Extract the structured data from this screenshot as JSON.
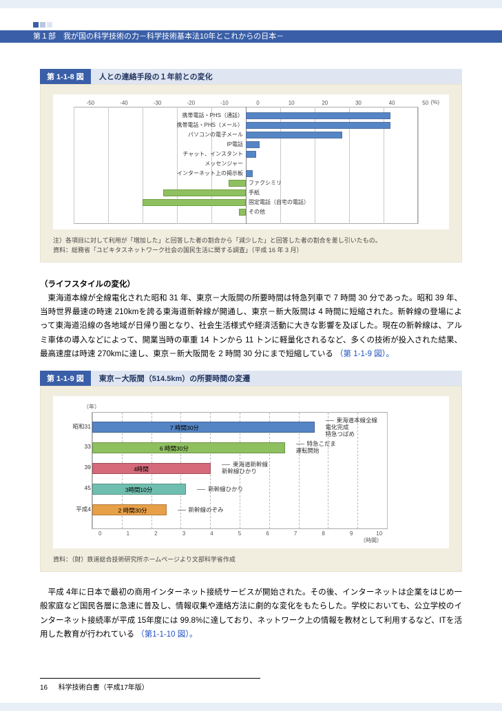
{
  "header": {
    "square_colors": [
      "#3a5fa8",
      "#b8c6e0",
      "#dfe6f2"
    ],
    "breadcrumb": "第１部　我が国の科学技術の力－科学技術基本法10年とこれからの日本－"
  },
  "chart1": {
    "label_num": "第 1-1-8 図",
    "label_title": "人との連絡手段の１年前との変化",
    "type": "diverging-bar",
    "xmin": -50,
    "xmax": 50,
    "xtick_step": 10,
    "xticks": [
      "-50",
      "-40",
      "-30",
      "-20",
      "-10",
      "0",
      "10",
      "20",
      "30",
      "40",
      "50"
    ],
    "xunit": "(%)",
    "bar_pos_color": "#5585c5",
    "bar_neg_color": "#8fc060",
    "background_color": "#ffffff",
    "panel_color": "#f2eedf",
    "grid_color": "#c8c8c8",
    "series": [
      {
        "label": "携帯電話・PHS（通話）",
        "label_side": "left",
        "value": 42
      },
      {
        "label": "携帯電話・PHS（メール）",
        "label_side": "left",
        "value": 42
      },
      {
        "label": "パソコンの電子メール",
        "label_side": "left",
        "value": 28
      },
      {
        "label": "IP電話",
        "label_side": "left",
        "value": 4
      },
      {
        "label": "チャット、インスタント",
        "label_side": "left",
        "value": 3
      },
      {
        "label": "メッセンジャー",
        "label_side": "left",
        "value": 0,
        "nolabel_data": true
      },
      {
        "label": "インターネット上の掲示板",
        "label_side": "left",
        "value": 2
      },
      {
        "label": "ファクシミリ",
        "label_side": "right",
        "value": -5
      },
      {
        "label": "手紙",
        "label_side": "right",
        "value": -24
      },
      {
        "label": "固定電話（自宅の電話）",
        "label_side": "right",
        "value": -30
      },
      {
        "label": "その他",
        "label_side": "right",
        "value": -2
      }
    ],
    "caption1": "注）各項目に対して利用が「増加した」と回答した者の割合から「減少した」と回答した者の割合を差し引いたもの。",
    "caption2": "資料：総務省「ユビキタスネットワーク社会の国民生活に関する調査」（平成 16 年 3 月）"
  },
  "para1": {
    "heading": "（ライフスタイルの変化）",
    "lines": [
      "　東海道本線が全線電化された昭和 31 年、東京－大阪間の所要時間は特急列車で 7 時間 30 分であった。昭和 39 年、当時世界最速の時速 210kmを誇る東海道新幹線が開通し、東京－新大阪間は 4 時間に短縮された。新幹線の登場によって東海道沿線の各地域が日帰り圏となり、社会生活様式や経済活動に大きな影響を及ぼした。現在の新幹線は、アルミ車体の導入などによって、開業当時の車重 14 トンから 11 トンに軽量化されるなど、多くの技術が投入された結果、最高速度は時速 270kmに達し、東京－新大阪間を 2 時間 30 分にまで短縮している",
      "（第 1-1-9 図）。"
    ]
  },
  "chart2": {
    "label_num": "第 1-1-9 図",
    "label_title": "東京－大阪間（514.5km）の所要時間の変遷",
    "type": "bar-horizontal",
    "ylabel": "（年）",
    "xlabel": "（時間）",
    "xmin": 0,
    "xmax": 10,
    "xtick_step": 1,
    "xticks": [
      "0",
      "1",
      "2",
      "3",
      "4",
      "5",
      "6",
      "7",
      "8",
      "9",
      "10"
    ],
    "panel_color": "#f2eedf",
    "grid_color": "#bbbbbb",
    "series": [
      {
        "ylabel": "昭和31",
        "value": 7.5,
        "color": "#5585c5",
        "barlabel": "7 時間30分",
        "annotation": "東海道本線全線\n電化完成\n特急つばめ"
      },
      {
        "ylabel": "33",
        "value": 6.5,
        "color": "#8fc060",
        "barlabel": "6 時間30分",
        "annotation": "特急こだま\n運転開始"
      },
      {
        "ylabel": "39",
        "value": 4.0,
        "color": "#d46a7a",
        "barlabel": "4時間",
        "annotation": "東海道新幹線\n新幹線ひかり"
      },
      {
        "ylabel": "45",
        "value": 3.17,
        "color": "#6fbfb0",
        "barlabel": "3時間10分",
        "annotation": "新幹線ひかり"
      },
      {
        "ylabel": "平成4",
        "value": 2.5,
        "color": "#e8a048",
        "barlabel": "2 時間30分",
        "annotation": "新幹線のぞみ"
      }
    ],
    "caption": "資料：（財）鉄道総合技術研究所ホームページより文部科学省作成"
  },
  "para2": {
    "lines": [
      "　平成 4年に日本で最初の商用インターネット接続サービスが開始された。その後、インターネットは企業をはじめ一般家庭など国民各層に急速に普及し、情報収集や連絡方法に劇的な変化をもたらした。学校においても、公立学校のインターネット接続率が平成 15年度には 99.8%に達しており、ネットワーク上の情報を教材として利用するなど、ITを活用した教育が行われている",
      "（第1-1-10 図）。"
    ]
  },
  "footer": {
    "page_num": "16",
    "doc_title": "科学技術白書（平成17年版）"
  }
}
